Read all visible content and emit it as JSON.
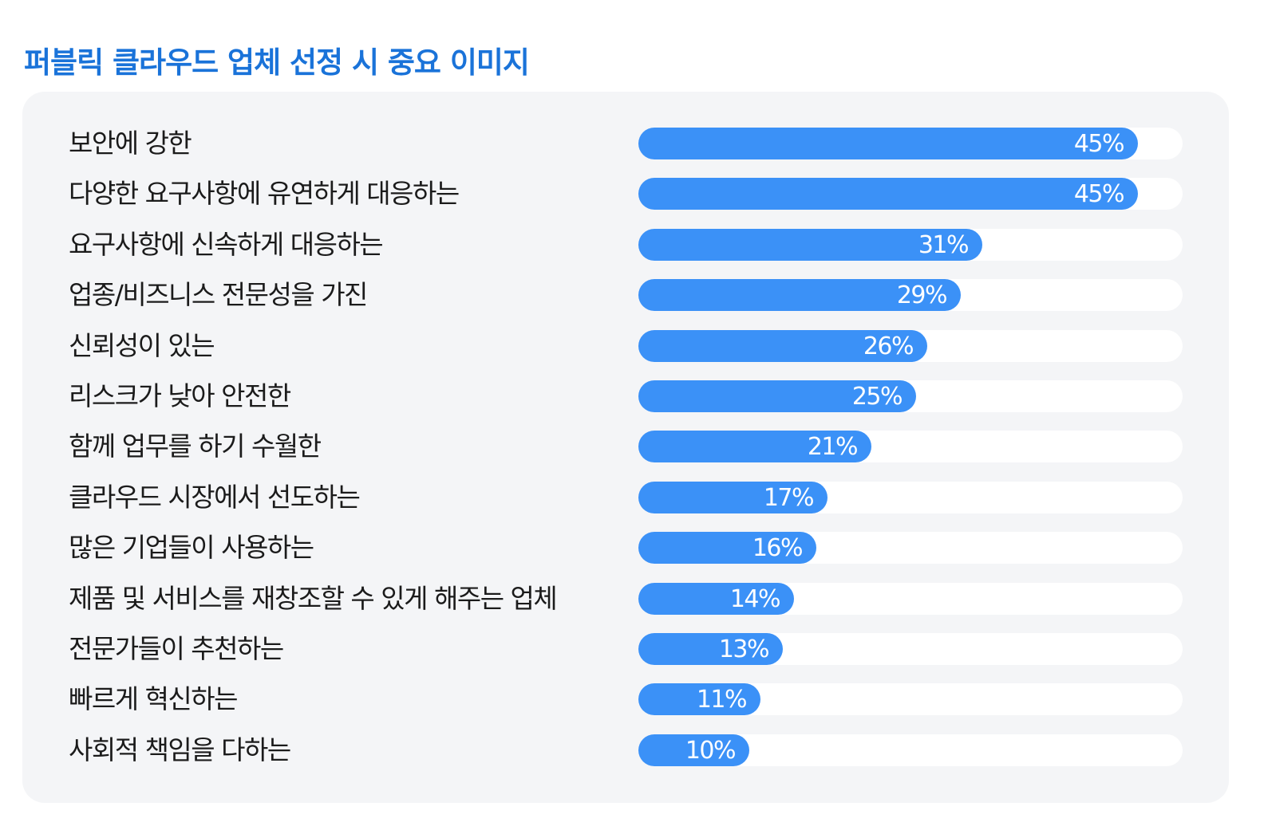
{
  "chart_data": {
    "type": "bar",
    "orientation": "horizontal",
    "title": "퍼블릭 클라우드 업체 선정 시 중요 이미지",
    "xlabel": "",
    "ylabel": "",
    "xlim": [
      0,
      49
    ],
    "unit": "%",
    "categories": [
      "보안에 강한",
      "다양한 요구사항에 유연하게 대응하는",
      "요구사항에 신속하게 대응하는",
      "업종/비즈니스 전문성을 가진",
      "신뢰성이 있는",
      "리스크가 낮아 안전한",
      "함께 업무를 하기 수월한",
      "클라우드 시장에서 선도하는",
      "많은 기업들이 사용하는",
      "제품 및 서비스를 재창조할 수 있게 해주는 업체",
      "전문가들이 추천하는",
      "빠르게 혁신하는",
      "사회적 책임을 다하는"
    ],
    "values": [
      45,
      45,
      31,
      29,
      26,
      25,
      21,
      17,
      16,
      14,
      13,
      11,
      10
    ],
    "value_labels": [
      "45%",
      "45%",
      "31%",
      "29%",
      "26%",
      "25%",
      "21%",
      "17%",
      "16%",
      "14%",
      "13%",
      "11%",
      "10%"
    ],
    "bar_color": "#3b91f7",
    "track_color": "#ffffff",
    "panel_color": "#f4f5f7",
    "title_color": "#1a73d9"
  }
}
